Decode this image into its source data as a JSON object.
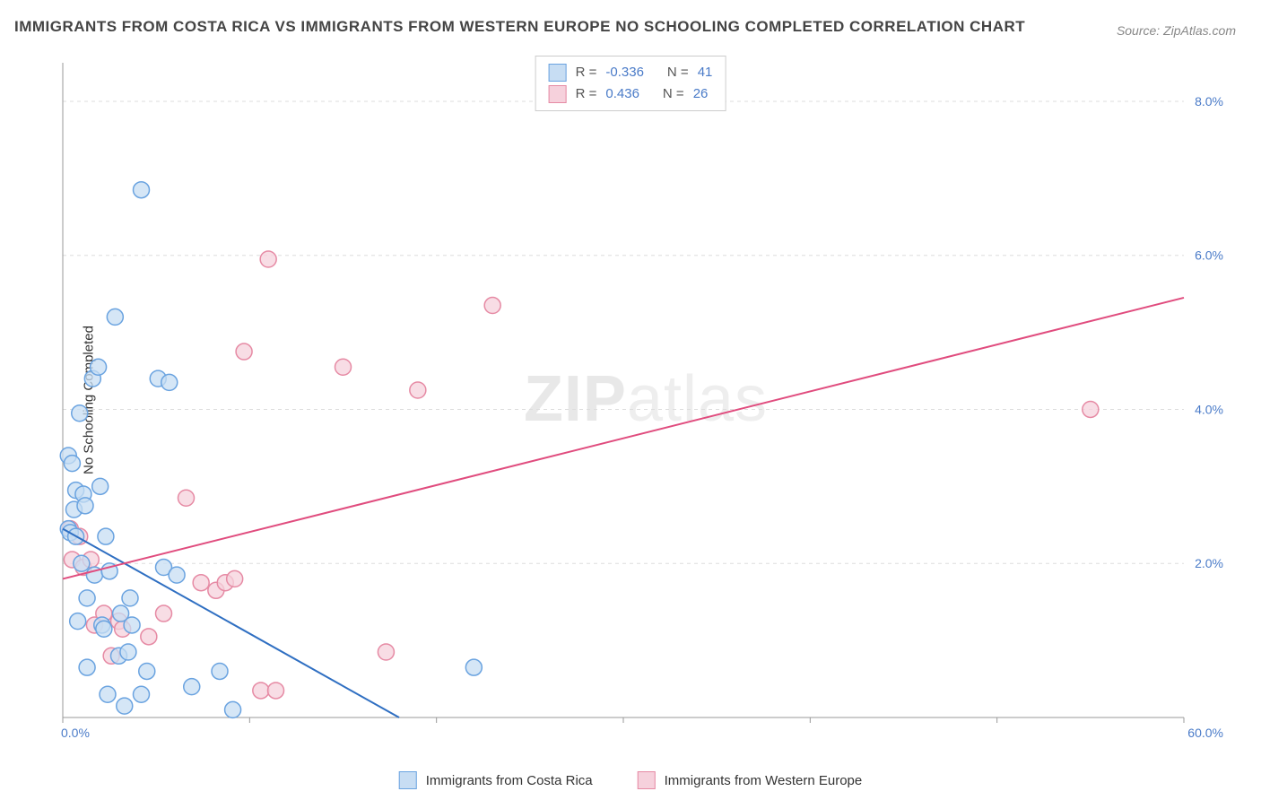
{
  "title": "IMMIGRANTS FROM COSTA RICA VS IMMIGRANTS FROM WESTERN EUROPE NO SCHOOLING COMPLETED CORRELATION CHART",
  "source": "Source: ZipAtlas.com",
  "y_axis_label": "No Schooling Completed",
  "watermark_bold": "ZIP",
  "watermark_thin": "atlas",
  "chart": {
    "type": "scatter-with-regression",
    "xlim": [
      0,
      60
    ],
    "ylim": [
      0,
      8.5
    ],
    "x_tick_first": "0.0%",
    "x_tick_last": "60.0%",
    "x_tick_positions": [
      0,
      10,
      20,
      30,
      40,
      50,
      60
    ],
    "y_ticks": [
      {
        "v": 2.0,
        "label": "2.0%"
      },
      {
        "v": 4.0,
        "label": "4.0%"
      },
      {
        "v": 6.0,
        "label": "6.0%"
      },
      {
        "v": 8.0,
        "label": "8.0%"
      }
    ],
    "grid_color": "#dddddd",
    "axis_color": "#999999",
    "background_color": "#ffffff",
    "marker_radius": 9,
    "marker_stroke_width": 1.5,
    "line_width": 2
  },
  "series": {
    "a": {
      "label": "Immigrants from Costa Rica",
      "fill": "#c7ddf3",
      "stroke": "#6aa3e0",
      "line_color": "#2f6fc2",
      "swatch_fill": "#c7ddf3",
      "swatch_border": "#6aa3e0",
      "R": "-0.336",
      "N": "41",
      "regression": {
        "x1": 0,
        "y1": 2.45,
        "x2": 18,
        "y2": 0
      },
      "points": [
        [
          0.3,
          3.4
        ],
        [
          0.3,
          2.45
        ],
        [
          0.4,
          2.4
        ],
        [
          0.5,
          3.3
        ],
        [
          0.6,
          2.7
        ],
        [
          0.7,
          2.95
        ],
        [
          0.7,
          2.35
        ],
        [
          0.8,
          1.25
        ],
        [
          0.9,
          3.95
        ],
        [
          1.0,
          2.0
        ],
        [
          1.1,
          2.9
        ],
        [
          1.2,
          2.75
        ],
        [
          1.3,
          1.55
        ],
        [
          1.3,
          0.65
        ],
        [
          1.6,
          4.4
        ],
        [
          1.7,
          1.85
        ],
        [
          1.9,
          4.55
        ],
        [
          2.0,
          3.0
        ],
        [
          2.1,
          1.2
        ],
        [
          2.2,
          1.15
        ],
        [
          2.3,
          2.35
        ],
        [
          2.4,
          0.3
        ],
        [
          2.5,
          1.9
        ],
        [
          2.8,
          5.2
        ],
        [
          3.0,
          0.8
        ],
        [
          3.1,
          1.35
        ],
        [
          3.3,
          0.15
        ],
        [
          3.5,
          0.85
        ],
        [
          3.6,
          1.55
        ],
        [
          3.7,
          1.2
        ],
        [
          4.2,
          0.3
        ],
        [
          4.2,
          6.85
        ],
        [
          4.5,
          0.6
        ],
        [
          5.1,
          4.4
        ],
        [
          5.4,
          1.95
        ],
        [
          5.7,
          4.35
        ],
        [
          6.1,
          1.85
        ],
        [
          6.9,
          0.4
        ],
        [
          8.4,
          0.6
        ],
        [
          9.1,
          0.1
        ],
        [
          22.0,
          0.65
        ]
      ]
    },
    "b": {
      "label": "Immigrants from Western Europe",
      "fill": "#f6d1dc",
      "stroke": "#e68aa4",
      "line_color": "#e04c7e",
      "swatch_fill": "#f6d1dc",
      "swatch_border": "#e68aa4",
      "R": "0.436",
      "N": "26",
      "regression": {
        "x1": 0,
        "y1": 1.8,
        "x2": 60,
        "y2": 5.45
      },
      "points": [
        [
          0.4,
          2.45
        ],
        [
          0.5,
          2.05
        ],
        [
          0.9,
          2.35
        ],
        [
          1.1,
          1.95
        ],
        [
          1.5,
          2.05
        ],
        [
          1.7,
          1.2
        ],
        [
          2.2,
          1.35
        ],
        [
          2.6,
          0.8
        ],
        [
          3.0,
          1.25
        ],
        [
          3.2,
          1.15
        ],
        [
          4.6,
          1.05
        ],
        [
          5.4,
          1.35
        ],
        [
          6.6,
          2.85
        ],
        [
          7.4,
          1.75
        ],
        [
          8.2,
          1.65
        ],
        [
          8.7,
          1.75
        ],
        [
          9.2,
          1.8
        ],
        [
          9.7,
          4.75
        ],
        [
          10.6,
          0.35
        ],
        [
          11.0,
          5.95
        ],
        [
          11.4,
          0.35
        ],
        [
          15.0,
          4.55
        ],
        [
          17.3,
          0.85
        ],
        [
          19.0,
          4.25
        ],
        [
          23.0,
          5.35
        ],
        [
          55.0,
          4.0
        ]
      ]
    }
  },
  "legend_top": {
    "R_label": "R =",
    "N_label": "N ="
  }
}
